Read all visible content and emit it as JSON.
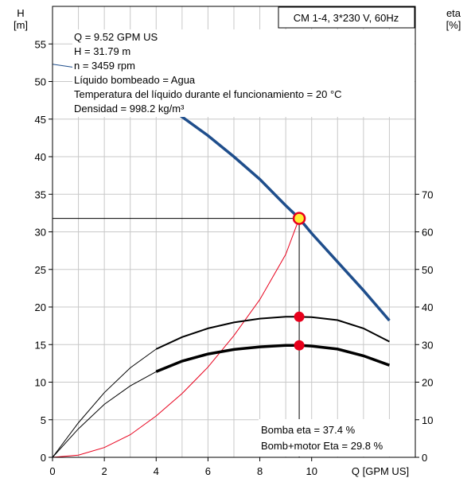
{
  "chart_data": {
    "type": "line",
    "title": "CM 1-4, 3*230 V, 60Hz",
    "xlabel": "Q [GPM US]",
    "ylabel_left": [
      "H",
      "[m]"
    ],
    "ylabel_right": [
      "eta",
      "[%]"
    ],
    "xlim": [
      0,
      14
    ],
    "ylim_left": [
      0,
      60
    ],
    "ylim_right": [
      0,
      120
    ],
    "grid": true,
    "x_ticks": [
      0,
      2,
      4,
      6,
      8,
      10
    ],
    "y_ticks_left": [
      0,
      5,
      10,
      15,
      20,
      25,
      30,
      35,
      40,
      45,
      50,
      55
    ],
    "y_ticks_right": [
      0,
      10,
      20,
      30,
      40,
      50,
      60,
      70
    ],
    "info_lines": [
      "Q = 9.52 GPM US",
      "H = 31.79 m",
      "n = 3459 rpm",
      "Líquido bombeado = Agua",
      "Temperatura del líquido durante el funcionamiento = 20 °C",
      "Densidad = 998.2 kg/m³"
    ],
    "eta_lines": [
      "Bomba eta = 37.4 %",
      "Bomb+motor Eta = 29.8 %"
    ],
    "duty_point": {
      "x": 9.52,
      "y": 31.79
    },
    "series": [
      {
        "axis": "left",
        "color": "#1f4e8c",
        "x": [
          0,
          1,
          2,
          3,
          4,
          5,
          6,
          7,
          8,
          9,
          9.52,
          10,
          11,
          12,
          13
        ],
        "y": [
          52.3,
          51.8,
          50.8,
          49.3,
          47.5,
          45.3,
          42.8,
          40.0,
          37.0,
          33.5,
          31.79,
          29.8,
          26.0,
          22.2,
          18.2
        ]
      },
      {
        "axis": "right",
        "color": "#000000",
        "x": [
          0,
          1,
          2,
          3,
          4,
          5,
          6,
          7,
          8,
          9,
          9.52,
          10,
          11,
          12,
          13
        ],
        "y": [
          0,
          9.2,
          17.2,
          23.8,
          28.8,
          32.0,
          34.3,
          35.9,
          36.9,
          37.4,
          37.4,
          37.3,
          36.5,
          34.3,
          30.8
        ]
      },
      {
        "axis": "right",
        "color": "#000000",
        "x": [
          0,
          1,
          2,
          3,
          4,
          5,
          6,
          7,
          8,
          9,
          9.52,
          10,
          11,
          12,
          13
        ],
        "y": [
          0,
          7.6,
          14.1,
          19.0,
          22.8,
          25.6,
          27.5,
          28.7,
          29.4,
          29.8,
          29.8,
          29.6,
          28.8,
          27.0,
          24.5
        ]
      },
      {
        "axis": "left",
        "color": "#e8001c",
        "x": [
          0,
          1,
          2,
          3,
          4,
          5,
          6,
          7,
          8,
          9,
          9.52
        ],
        "y": [
          0,
          0.3,
          1.3,
          3.0,
          5.5,
          8.5,
          12.0,
          16.2,
          21.0,
          27.0,
          31.79
        ]
      }
    ],
    "marker_points": [
      {
        "x": 9.52,
        "y": 18.7,
        "color": "#e8001c"
      },
      {
        "x": 9.52,
        "y": 14.9,
        "color": "#e8001c"
      }
    ]
  }
}
